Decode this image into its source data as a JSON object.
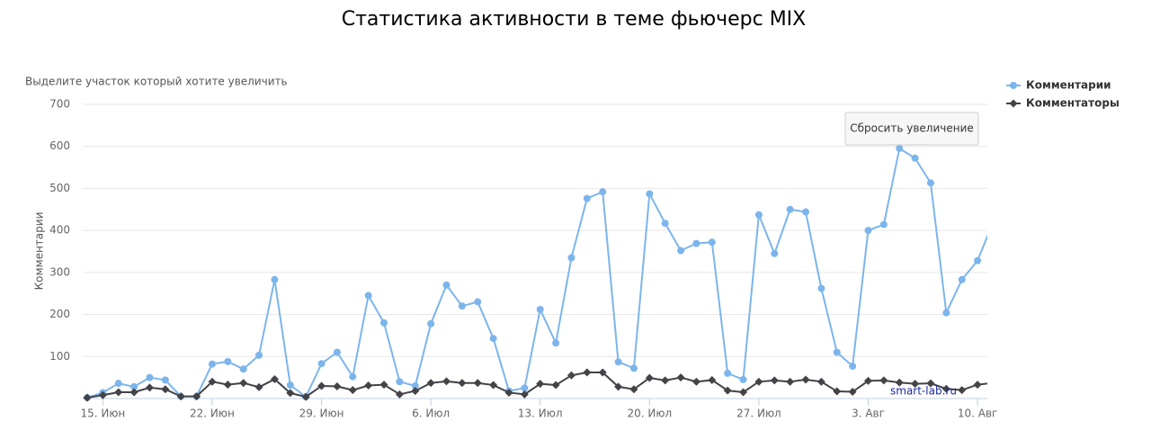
{
  "chart_data": {
    "type": "line",
    "title": "Статистика активности в теме фьючерс MIX",
    "zoom_hint": "Выделите участок который хотите увеличить",
    "y_label": "Комментарии",
    "reset_button": "Сбросить увеличение",
    "watermark": "smart-lab.ru",
    "categories": [
      null,
      "15. Июн",
      null,
      null,
      null,
      null,
      null,
      null,
      "22. Июн",
      null,
      null,
      null,
      null,
      null,
      null,
      "29. Июн",
      null,
      null,
      null,
      null,
      null,
      null,
      "6. Июл",
      null,
      null,
      null,
      null,
      null,
      null,
      "13. Июл",
      null,
      null,
      null,
      null,
      null,
      null,
      "20. Июл",
      null,
      null,
      null,
      null,
      null,
      null,
      "27. Июл",
      null,
      null,
      null,
      null,
      null,
      null,
      "3. Авг",
      null,
      null,
      null,
      null,
      null,
      null,
      "10. Авг",
      null
    ],
    "series": [
      {
        "name": "Комментарии",
        "color": "#7cb5ec",
        "marker": "circle",
        "values": [
          2,
          14,
          36,
          28,
          50,
          44,
          5,
          5,
          82,
          88,
          70,
          103,
          283,
          32,
          4,
          83,
          110,
          52,
          245,
          180,
          40,
          30,
          178,
          270,
          220,
          230,
          143,
          18,
          25,
          212,
          132,
          335,
          476,
          492,
          87,
          72,
          487,
          417,
          352,
          369,
          372,
          60,
          45,
          437,
          345,
          450,
          444,
          262,
          110,
          77,
          400,
          414,
          595,
          572,
          513,
          204,
          283,
          328,
          420
        ]
      },
      {
        "name": "Комментаторы",
        "color": "#434348",
        "marker": "diamond",
        "values": [
          2,
          8,
          15,
          15,
          26,
          22,
          5,
          5,
          40,
          33,
          37,
          27,
          46,
          13,
          4,
          30,
          29,
          20,
          31,
          33,
          10,
          18,
          37,
          41,
          37,
          37,
          32,
          14,
          10,
          35,
          32,
          55,
          62,
          62,
          28,
          22,
          49,
          43,
          50,
          40,
          44,
          19,
          15,
          40,
          43,
          40,
          45,
          40,
          17,
          16,
          42,
          43,
          38,
          35,
          36,
          23,
          20,
          33,
          37
        ]
      }
    ],
    "ylim": [
      0,
      700
    ],
    "yticks": [
      100,
      200,
      300,
      400,
      500,
      600,
      700
    ],
    "grid": true,
    "legend": "top-right"
  }
}
